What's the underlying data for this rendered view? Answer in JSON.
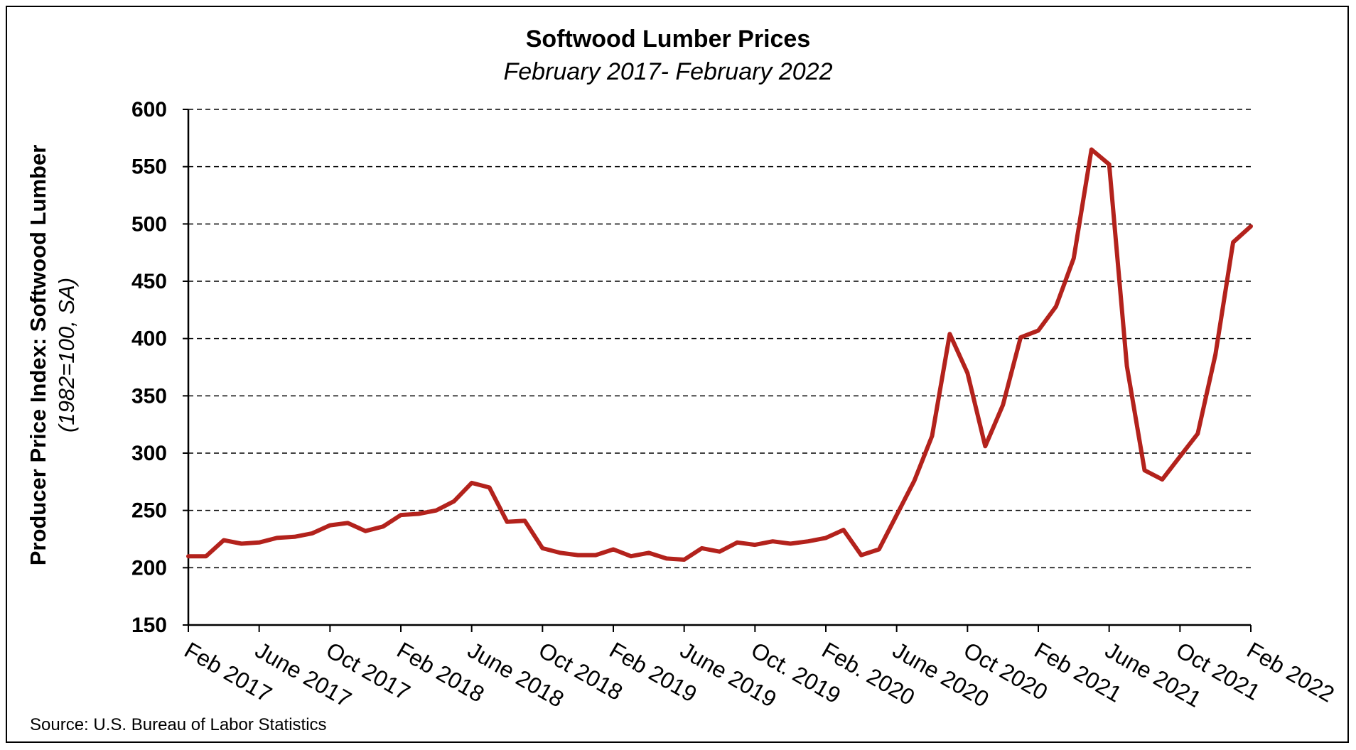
{
  "chart_data": {
    "type": "line",
    "title": "Softwood Lumber Prices",
    "subtitle": "February 2017- February 2022",
    "ylabel": "Producer Price Index: Softwood Lumber",
    "ylabel_sub": "(1982=100, SA)",
    "source": "Source: U.S. Bureau of Labor Statistics",
    "ylim": [
      150,
      600
    ],
    "yticks": [
      150,
      200,
      250,
      300,
      350,
      400,
      450,
      500,
      550,
      600
    ],
    "grid": "horizontal-dashed",
    "x_tick_labels": [
      "Feb 2017",
      "June 2017",
      "Oct 2017",
      "Feb 2018",
      "June 2018",
      "Oct 2018",
      "Feb 2019",
      "June 2019",
      "Oct. 2019",
      "Feb. 2020",
      "June 2020",
      "Oct 2020",
      "Feb 2021",
      "June 2021",
      "Oct 2021",
      "Feb 2022"
    ],
    "x_tick_months": [
      0,
      4,
      8,
      12,
      16,
      20,
      24,
      28,
      32,
      36,
      40,
      44,
      48,
      52,
      56,
      60
    ],
    "series": [
      {
        "color": "#b3221c",
        "months": [
          0,
          1,
          2,
          3,
          4,
          5,
          6,
          7,
          8,
          9,
          10,
          11,
          12,
          13,
          14,
          15,
          16,
          17,
          18,
          19,
          20,
          21,
          22,
          23,
          24,
          25,
          26,
          27,
          28,
          29,
          30,
          31,
          32,
          33,
          34,
          35,
          36,
          37,
          38,
          39,
          40,
          41,
          42,
          43,
          44,
          45,
          46,
          47,
          48,
          49,
          50,
          51,
          52,
          53,
          54,
          55,
          56,
          57,
          58,
          59,
          60
        ],
        "values": [
          210,
          210,
          224,
          221,
          222,
          226,
          227,
          230,
          237,
          239,
          232,
          236,
          246,
          247,
          250,
          258,
          274,
          270,
          240,
          241,
          217,
          213,
          211,
          211,
          216,
          210,
          213,
          208,
          207,
          217,
          214,
          222,
          220,
          223,
          221,
          223,
          226,
          233,
          211,
          216,
          246,
          276,
          315,
          404,
          370,
          306,
          342,
          401,
          407,
          428,
          470,
          565,
          552,
          376,
          285,
          277,
          297,
          317,
          386,
          484,
          498
        ]
      }
    ]
  }
}
